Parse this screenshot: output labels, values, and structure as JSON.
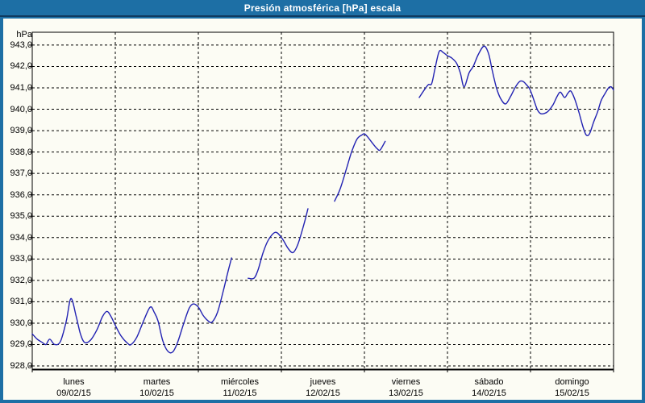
{
  "window": {
    "title": "Presión atmosférica [hPa] escala"
  },
  "colors": {
    "frame_bg": "#1d6fa5",
    "titlebar_bg": "#1d6fa5",
    "titlebar_separator": "#0f3a5f",
    "content_bg": "#fcfcf4",
    "line": "#2222b2",
    "grid": "#000000",
    "text": "#000000",
    "title_text": "#ffffff"
  },
  "chart_data": {
    "type": "line",
    "title": "Presión atmosférica [hPa] escala",
    "ylabel": "hPa",
    "xlabel": "",
    "ylim": [
      927.85,
      943.6
    ],
    "xlim_days": [
      0,
      7
    ],
    "grid": "dashed",
    "legend_position": "none",
    "y_tick_labels": [
      "943,0",
      "942,0",
      "941,0",
      "940,0",
      "939,0",
      "938,0",
      "937,0",
      "936,0",
      "935,0",
      "934,0",
      "933,0",
      "932,0",
      "931,0",
      "930,0",
      "929,0",
      "928,0"
    ],
    "x_days": [
      {
        "label": "lunes",
        "date": "09/02/15"
      },
      {
        "label": "martes",
        "date": "10/02/15"
      },
      {
        "label": "miércoles",
        "date": "11/02/15"
      },
      {
        "label": "jueves",
        "date": "12/02/15"
      },
      {
        "label": "viernes",
        "date": "13/02/15"
      },
      {
        "label": "sábado",
        "date": "14/02/15"
      },
      {
        "label": "domingo",
        "date": "15/02/15"
      }
    ],
    "series": [
      {
        "name": "Presión atmosférica",
        "unit": "hPa",
        "color": "#2222b2",
        "segments": [
          [
            [
              0.0,
              929.5
            ],
            [
              0.06,
              929.25
            ],
            [
              0.12,
              929.1
            ],
            [
              0.165,
              929.0
            ],
            [
              0.21,
              929.25
            ],
            [
              0.27,
              929.0
            ],
            [
              0.34,
              929.15
            ],
            [
              0.41,
              930.1
            ],
            [
              0.466,
              931.15
            ],
            [
              0.53,
              930.3
            ],
            [
              0.58,
              929.5
            ],
            [
              0.63,
              929.1
            ],
            [
              0.7,
              929.2
            ],
            [
              0.78,
              929.7
            ],
            [
              0.845,
              930.3
            ],
            [
              0.9,
              930.55
            ],
            [
              0.95,
              930.3
            ],
            [
              1.0,
              929.9
            ],
            [
              1.07,
              929.4
            ],
            [
              1.15,
              929.05
            ],
            [
              1.19,
              929.0
            ],
            [
              1.26,
              929.35
            ],
            [
              1.34,
              930.1
            ],
            [
              1.42,
              930.75
            ],
            [
              1.47,
              930.5
            ],
            [
              1.515,
              930.1
            ],
            [
              1.57,
              929.2
            ],
            [
              1.63,
              928.7
            ],
            [
              1.69,
              928.65
            ],
            [
              1.75,
              929.1
            ],
            [
              1.825,
              930.0
            ],
            [
              1.89,
              930.7
            ],
            [
              1.94,
              930.9
            ],
            [
              2.0,
              930.75
            ],
            [
              2.06,
              930.35
            ],
            [
              2.12,
              930.1
            ],
            [
              2.165,
              930.05
            ],
            [
              2.23,
              930.5
            ],
            [
              2.3,
              931.5
            ],
            [
              2.35,
              932.3
            ],
            [
              2.4,
              933.05
            ]
          ],
          [
            [
              2.6,
              932.1
            ],
            [
              2.67,
              932.1
            ],
            [
              2.72,
              932.5
            ],
            [
              2.78,
              933.3
            ],
            [
              2.845,
              933.9
            ],
            [
              2.93,
              934.25
            ],
            [
              3.01,
              933.95
            ],
            [
              3.08,
              933.5
            ],
            [
              3.14,
              933.3
            ],
            [
              3.2,
              933.7
            ],
            [
              3.27,
              934.6
            ],
            [
              3.32,
              935.35
            ]
          ],
          [
            [
              3.64,
              935.7
            ],
            [
              3.71,
              936.3
            ],
            [
              3.79,
              937.3
            ],
            [
              3.845,
              938.0
            ],
            [
              3.91,
              938.6
            ],
            [
              3.97,
              938.8
            ],
            [
              4.0,
              938.85
            ],
            [
              4.04,
              938.7
            ],
            [
              4.1,
              938.4
            ],
            [
              4.155,
              938.15
            ],
            [
              4.19,
              938.1
            ],
            [
              4.25,
              938.5
            ]
          ],
          [
            [
              4.66,
              940.55
            ],
            [
              4.72,
              940.9
            ],
            [
              4.77,
              941.15
            ],
            [
              4.81,
              941.2
            ],
            [
              4.85,
              941.9
            ],
            [
              4.9,
              942.7
            ],
            [
              4.95,
              942.65
            ],
            [
              5.0,
              942.5
            ],
            [
              5.05,
              942.4
            ],
            [
              5.11,
              942.15
            ],
            [
              5.155,
              941.7
            ],
            [
              5.2,
              941.05
            ],
            [
              5.26,
              941.7
            ],
            [
              5.31,
              942.0
            ],
            [
              5.37,
              942.55
            ],
            [
              5.44,
              942.95
            ],
            [
              5.495,
              942.6
            ],
            [
              5.54,
              941.8
            ],
            [
              5.59,
              941.0
            ],
            [
              5.64,
              940.5
            ],
            [
              5.7,
              940.25
            ],
            [
              5.76,
              940.6
            ],
            [
              5.82,
              941.05
            ],
            [
              5.87,
              941.3
            ],
            [
              5.91,
              941.3
            ],
            [
              5.95,
              941.15
            ],
            [
              5.99,
              940.95
            ],
            [
              6.03,
              940.55
            ],
            [
              6.08,
              940.0
            ],
            [
              6.12,
              939.8
            ],
            [
              6.165,
              939.8
            ],
            [
              6.21,
              939.9
            ],
            [
              6.27,
              940.2
            ],
            [
              6.32,
              940.6
            ],
            [
              6.36,
              940.8
            ],
            [
              6.41,
              940.55
            ],
            [
              6.45,
              940.75
            ],
            [
              6.485,
              940.85
            ],
            [
              6.53,
              940.5
            ],
            [
              6.58,
              939.9
            ],
            [
              6.63,
              939.2
            ],
            [
              6.67,
              938.8
            ],
            [
              6.71,
              938.85
            ],
            [
              6.76,
              939.4
            ],
            [
              6.81,
              939.9
            ],
            [
              6.85,
              940.4
            ],
            [
              6.9,
              940.75
            ],
            [
              6.94,
              941.0
            ],
            [
              6.97,
              941.05
            ],
            [
              7.0,
              940.9
            ]
          ]
        ]
      }
    ]
  }
}
